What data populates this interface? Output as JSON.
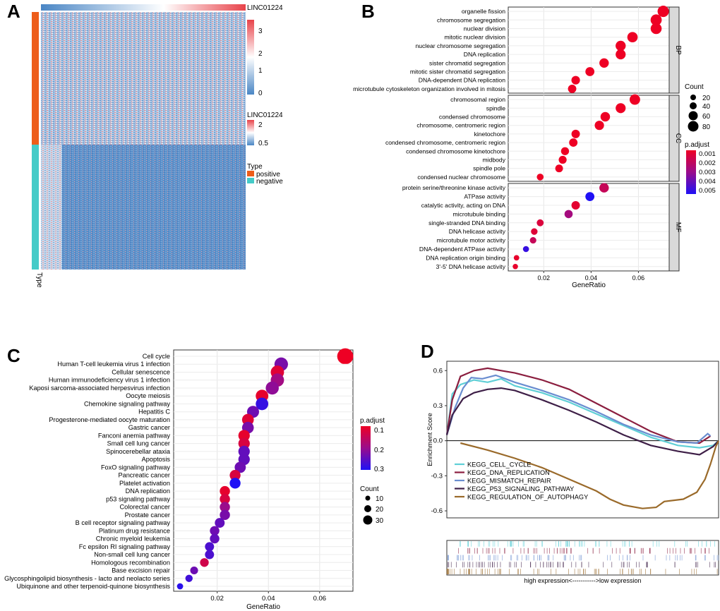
{
  "panels": {
    "A": "A",
    "B": "B",
    "C": "C",
    "D": "D"
  },
  "colors": {
    "positive": "#ED5D1A",
    "negative": "#45CBC8",
    "heat_low": "#4A86C5",
    "heat_mid": "#FFFFFF",
    "heat_high": "#E8434A",
    "padj_low": "#EE0024",
    "padj_high": "#1F10F5"
  },
  "chart_data": [
    {
      "panel": "A",
      "type": "heatmap",
      "annotation_title": "LINC01224",
      "scale_ticks": [
        "3",
        "2",
        "1",
        "0"
      ],
      "legend2_title": "LINC01224",
      "legend2_ticks": [
        "2",
        "0.5"
      ],
      "type_legend_title": "Type",
      "type_legend": [
        "positive",
        "negative"
      ],
      "row_annotation_label": "Type",
      "groups": [
        {
          "name": "positive",
          "fraction_of_rows": 0.41
        },
        {
          "name": "negative",
          "fraction_of_rows": 0.59
        }
      ]
    },
    {
      "panel": "B",
      "type": "scatter",
      "xlabel": "GeneRatio",
      "x_ticks": [
        "0.02",
        "0.04",
        "0.06"
      ],
      "xlim": [
        0.005,
        0.073
      ],
      "facets": [
        {
          "name": "BP",
          "terms": [
            {
              "label": "organelle fission",
              "x": 0.0705,
              "count": 80,
              "p": 0.0002
            },
            {
              "label": "chromosome segregation",
              "x": 0.0675,
              "count": 76,
              "p": 0.0002
            },
            {
              "label": "nuclear division",
              "x": 0.0675,
              "count": 74,
              "p": 0.0002
            },
            {
              "label": "mitotic nuclear division",
              "x": 0.0575,
              "count": 64,
              "p": 0.0002
            },
            {
              "label": "nuclear chromosome segregation",
              "x": 0.0525,
              "count": 60,
              "p": 0.0002
            },
            {
              "label": "DNA replication",
              "x": 0.0525,
              "count": 58,
              "p": 0.0002
            },
            {
              "label": "sister chromatid segregation",
              "x": 0.0455,
              "count": 50,
              "p": 0.0002
            },
            {
              "label": "mitotic sister chromatid segregation",
              "x": 0.0395,
              "count": 44,
              "p": 0.0002
            },
            {
              "label": "DNA-dependent DNA replication",
              "x": 0.0335,
              "count": 38,
              "p": 0.0002
            },
            {
              "label": "microtubule cytoskeleton organization involved in mitosis",
              "x": 0.032,
              "count": 36,
              "p": 0.0002
            }
          ]
        },
        {
          "name": "CC",
          "terms": [
            {
              "label": "chromosomal region",
              "x": 0.0585,
              "count": 66,
              "p": 0.0002
            },
            {
              "label": "spindle",
              "x": 0.0525,
              "count": 58,
              "p": 0.0002
            },
            {
              "label": "condensed chromosome",
              "x": 0.046,
              "count": 51,
              "p": 0.0002
            },
            {
              "label": "chromosome, centromeric region",
              "x": 0.0435,
              "count": 48,
              "p": 0.0002
            },
            {
              "label": "kinetochore",
              "x": 0.0335,
              "count": 37,
              "p": 0.0002
            },
            {
              "label": "condensed chromosome, centromeric region",
              "x": 0.0325,
              "count": 36,
              "p": 0.0002
            },
            {
              "label": "condensed chromosome kinetochore",
              "x": 0.029,
              "count": 32,
              "p": 0.0002
            },
            {
              "label": "midbody",
              "x": 0.028,
              "count": 31,
              "p": 0.0002
            },
            {
              "label": "spindle pole",
              "x": 0.0265,
              "count": 29,
              "p": 0.0002
            },
            {
              "label": "condensed nuclear chromosome",
              "x": 0.0185,
              "count": 20,
              "p": 0.0002
            }
          ]
        },
        {
          "name": "MF",
          "terms": [
            {
              "label": "protein serine/threonine kinase activity",
              "x": 0.0455,
              "count": 50,
              "p": 0.0015
            },
            {
              "label": "ATPase activity",
              "x": 0.0395,
              "count": 44,
              "p": 0.0055
            },
            {
              "label": "catalytic activity, acting on DNA",
              "x": 0.0335,
              "count": 37,
              "p": 0.0005
            },
            {
              "label": "microtubule binding",
              "x": 0.0305,
              "count": 34,
              "p": 0.0025
            },
            {
              "label": "single-stranded DNA binding",
              "x": 0.0185,
              "count": 21,
              "p": 0.0008
            },
            {
              "label": "DNA helicase activity",
              "x": 0.016,
              "count": 18,
              "p": 0.0007
            },
            {
              "label": "microtubule motor activity",
              "x": 0.0155,
              "count": 17,
              "p": 0.0015
            },
            {
              "label": "DNA-dependent ATPase activity",
              "x": 0.0125,
              "count": 14,
              "p": 0.005
            },
            {
              "label": "DNA replication origin binding",
              "x": 0.0085,
              "count": 10,
              "p": 0.0004
            },
            {
              "label": "3'-5' DNA helicase activity",
              "x": 0.008,
              "count": 9,
              "p": 0.0004
            }
          ]
        }
      ],
      "count_legend": {
        "title": "Count",
        "values": [
          "20",
          "40",
          "60",
          "80"
        ]
      },
      "padj_legend": {
        "title": "p.adjust",
        "ticks": [
          "0.001",
          "0.002",
          "0.003",
          "0.004",
          "0.005"
        ]
      }
    },
    {
      "panel": "C",
      "type": "scatter",
      "xlabel": "GeneRatio",
      "x_ticks": [
        "0.02",
        "0.04",
        "0.06"
      ],
      "xlim": [
        0.003,
        0.073
      ],
      "terms": [
        {
          "label": "Cell cycle",
          "x": 0.07,
          "count": 36,
          "p": 0.1
        },
        {
          "label": "Human T-cell leukemia virus 1 infection",
          "x": 0.045,
          "count": 24,
          "p": 0.24
        },
        {
          "label": "Cellular senescence",
          "x": 0.0435,
          "count": 23,
          "p": 0.12
        },
        {
          "label": "Human immunodeficiency virus 1 infection",
          "x": 0.0435,
          "count": 23,
          "p": 0.2
        },
        {
          "label": "Kaposi sarcoma-associated herpesvirus infection",
          "x": 0.0415,
          "count": 22,
          "p": 0.22
        },
        {
          "label": "Oocyte meiosis",
          "x": 0.0375,
          "count": 20,
          "p": 0.11
        },
        {
          "label": "Chemokine signaling pathway",
          "x": 0.0375,
          "count": 20,
          "p": 0.3
        },
        {
          "label": "Hepatitis C",
          "x": 0.034,
          "count": 18,
          "p": 0.25
        },
        {
          "label": "Progesterone-mediated oocyte maturation",
          "x": 0.032,
          "count": 17,
          "p": 0.12
        },
        {
          "label": "Gastric cancer",
          "x": 0.032,
          "count": 17,
          "p": 0.24
        },
        {
          "label": "Fanconi anemia pathway",
          "x": 0.0305,
          "count": 16,
          "p": 0.11
        },
        {
          "label": "Small cell lung cancer",
          "x": 0.0305,
          "count": 16,
          "p": 0.13
        },
        {
          "label": "Spinocerebellar ataxia",
          "x": 0.0305,
          "count": 16,
          "p": 0.26
        },
        {
          "label": "Apoptosis",
          "x": 0.0305,
          "count": 16,
          "p": 0.26
        },
        {
          "label": "FoxO signaling pathway",
          "x": 0.029,
          "count": 15,
          "p": 0.25
        },
        {
          "label": "Pancreatic cancer",
          "x": 0.027,
          "count": 14,
          "p": 0.13
        },
        {
          "label": "Platelet activation",
          "x": 0.027,
          "count": 14,
          "p": 0.32
        },
        {
          "label": "DNA replication",
          "x": 0.023,
          "count": 12,
          "p": 0.11
        },
        {
          "label": "p53 signaling pathway",
          "x": 0.023,
          "count": 12,
          "p": 0.13
        },
        {
          "label": "Colorectal cancer",
          "x": 0.023,
          "count": 12,
          "p": 0.21
        },
        {
          "label": "Prostate cancer",
          "x": 0.023,
          "count": 12,
          "p": 0.24
        },
        {
          "label": "B cell receptor signaling pathway",
          "x": 0.021,
          "count": 11,
          "p": 0.26
        },
        {
          "label": "Platinum drug resistance",
          "x": 0.019,
          "count": 10,
          "p": 0.25
        },
        {
          "label": "Chronic myeloid leukemia",
          "x": 0.019,
          "count": 10,
          "p": 0.26
        },
        {
          "label": "Fc epsilon RI signaling pathway",
          "x": 0.017,
          "count": 9,
          "p": 0.28
        },
        {
          "label": "Non-small cell lung cancer",
          "x": 0.017,
          "count": 9,
          "p": 0.28
        },
        {
          "label": "Homologous recombination",
          "x": 0.015,
          "count": 8,
          "p": 0.14
        },
        {
          "label": "Base excision repair",
          "x": 0.011,
          "count": 6,
          "p": 0.25
        },
        {
          "label": "Glycosphingolipid biosynthesis - lacto and neolacto series",
          "x": 0.009,
          "count": 5,
          "p": 0.29
        },
        {
          "label": "Ubiquinone and other terpenoid-quinone biosynthesis",
          "x": 0.0055,
          "count": 3,
          "p": 0.31
        }
      ],
      "padj_legend": {
        "title": "p.adjust",
        "ticks": [
          "0.1",
          "0.2",
          "0.3"
        ]
      },
      "count_legend": {
        "title": "Count",
        "values": [
          "10",
          "20",
          "30"
        ]
      }
    },
    {
      "panel": "D",
      "type": "line",
      "ylabel": "Enrichment Score",
      "y_ticks": [
        "0.6",
        "0.3",
        "0.0",
        "-0.3",
        "-0.6"
      ],
      "ylim": [
        -0.66,
        0.68
      ],
      "xlim": [
        0,
        1
      ],
      "xlabel": "high expression<----------->low expression",
      "series": [
        {
          "name": "KEGG_CELL_CYCLE",
          "color": "#5FCFD6",
          "points": [
            [
              0,
              0.05
            ],
            [
              0.02,
              0.4
            ],
            [
              0.05,
              0.48
            ],
            [
              0.1,
              0.52
            ],
            [
              0.15,
              0.5
            ],
            [
              0.2,
              0.53
            ],
            [
              0.25,
              0.47
            ],
            [
              0.35,
              0.41
            ],
            [
              0.45,
              0.33
            ],
            [
              0.55,
              0.23
            ],
            [
              0.65,
              0.13
            ],
            [
              0.75,
              0.03
            ],
            [
              0.85,
              -0.04
            ],
            [
              0.93,
              -0.06
            ],
            [
              0.98,
              -0.04
            ],
            [
              1,
              0
            ]
          ]
        },
        {
          "name": "KEGG_DNA_REPLICATION",
          "color": "#8B1E3F",
          "points": [
            [
              0,
              0.05
            ],
            [
              0.02,
              0.35
            ],
            [
              0.05,
              0.55
            ],
            [
              0.1,
              0.6
            ],
            [
              0.15,
              0.62
            ],
            [
              0.2,
              0.6
            ],
            [
              0.25,
              0.58
            ],
            [
              0.35,
              0.52
            ],
            [
              0.45,
              0.44
            ],
            [
              0.55,
              0.32
            ],
            [
              0.65,
              0.2
            ],
            [
              0.75,
              0.08
            ],
            [
              0.85,
              -0.01
            ],
            [
              0.93,
              -0.02
            ],
            [
              0.97,
              0.04
            ]
          ]
        },
        {
          "name": "KEGG_MISMATCH_REPAIR",
          "color": "#6A8ED0",
          "points": [
            [
              0,
              0.05
            ],
            [
              0.03,
              0.28
            ],
            [
              0.06,
              0.45
            ],
            [
              0.09,
              0.54
            ],
            [
              0.13,
              0.53
            ],
            [
              0.18,
              0.56
            ],
            [
              0.25,
              0.5
            ],
            [
              0.35,
              0.43
            ],
            [
              0.45,
              0.35
            ],
            [
              0.55,
              0.25
            ],
            [
              0.65,
              0.14
            ],
            [
              0.75,
              0.05
            ],
            [
              0.85,
              -0.01
            ],
            [
              0.92,
              -0.02
            ],
            [
              0.96,
              0.06
            ],
            [
              0.97,
              0.04
            ]
          ]
        },
        {
          "name": "KEGG_P53_SIGNALING_PATHWAY",
          "color": "#3E1F47",
          "points": [
            [
              0,
              0.05
            ],
            [
              0.02,
              0.22
            ],
            [
              0.06,
              0.36
            ],
            [
              0.1,
              0.41
            ],
            [
              0.15,
              0.44
            ],
            [
              0.2,
              0.45
            ],
            [
              0.25,
              0.43
            ],
            [
              0.35,
              0.35
            ],
            [
              0.45,
              0.26
            ],
            [
              0.55,
              0.16
            ],
            [
              0.65,
              0.05
            ],
            [
              0.75,
              -0.04
            ],
            [
              0.85,
              -0.09
            ],
            [
              0.93,
              -0.12
            ],
            [
              0.98,
              -0.05
            ],
            [
              1,
              0
            ]
          ]
        },
        {
          "name": "KEGG_REGULATION_OF_AUTOPHAGY",
          "color": "#9A6A2A",
          "points": [
            [
              0.05,
              -0.02
            ],
            [
              0.15,
              -0.08
            ],
            [
              0.25,
              -0.15
            ],
            [
              0.35,
              -0.23
            ],
            [
              0.45,
              -0.33
            ],
            [
              0.55,
              -0.43
            ],
            [
              0.6,
              -0.5
            ],
            [
              0.65,
              -0.55
            ],
            [
              0.72,
              -0.58
            ],
            [
              0.77,
              -0.57
            ],
            [
              0.8,
              -0.52
            ],
            [
              0.87,
              -0.5
            ],
            [
              0.92,
              -0.44
            ],
            [
              0.95,
              -0.33
            ],
            [
              0.97,
              -0.2
            ],
            [
              0.99,
              -0.05
            ],
            [
              1,
              0
            ]
          ]
        }
      ]
    }
  ]
}
